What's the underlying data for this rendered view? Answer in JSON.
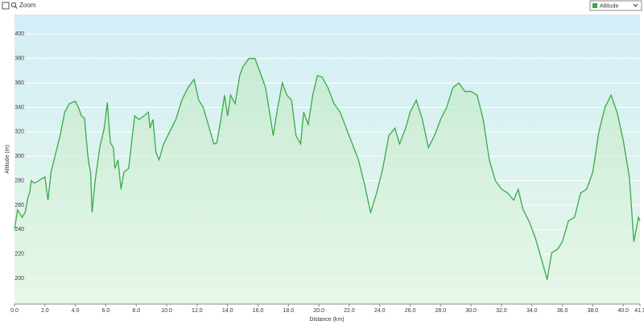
{
  "controls": {
    "zoom": "Zoom"
  },
  "chart_data": {
    "type": "line",
    "xlabel": "Distance  (km)",
    "ylabel": "Altitude (m)",
    "xlim": [
      0,
      41.1
    ],
    "ylim": [
      179,
      416
    ],
    "xticks": [
      {
        "value": 0,
        "label": "0.0"
      },
      {
        "value": 2,
        "label": "2.0"
      },
      {
        "value": 4,
        "label": "4.0"
      },
      {
        "value": 6,
        "label": "6.0"
      },
      {
        "value": 8,
        "label": "8.0"
      },
      {
        "value": 10,
        "label": "10.0"
      },
      {
        "value": 12,
        "label": "12.0"
      },
      {
        "value": 14,
        "label": "14.0"
      },
      {
        "value": 16,
        "label": "16.0"
      },
      {
        "value": 18,
        "label": "18.0"
      },
      {
        "value": 20,
        "label": "20.0"
      },
      {
        "value": 22,
        "label": "22.0"
      },
      {
        "value": 24,
        "label": "24.0"
      },
      {
        "value": 26,
        "label": "26.0"
      },
      {
        "value": 28,
        "label": "28.0"
      },
      {
        "value": 30,
        "label": "30.0"
      },
      {
        "value": 32,
        "label": "32.0"
      },
      {
        "value": 34,
        "label": "34.0"
      },
      {
        "value": 36,
        "label": "36.0"
      },
      {
        "value": 38,
        "label": "38.0"
      },
      {
        "value": 40,
        "label": "40.0"
      },
      41.1
    ],
    "yticks": [
      200,
      220,
      240,
      260,
      280,
      300,
      320,
      340,
      360,
      380,
      400
    ],
    "grid": true,
    "x": [
      0,
      0.2,
      0.5,
      0.7,
      0.9,
      1.0,
      1.1,
      1.3,
      1.6,
      2.0,
      2.2,
      2.4,
      2.8,
      3.0,
      3.3,
      3.6,
      4.0,
      4.2,
      4.4,
      4.6,
      4.8,
      4.9,
      5.0,
      5.1,
      5.3,
      5.6,
      5.9,
      6.1,
      6.3,
      6.5,
      6.6,
      6.8,
      7.0,
      7.2,
      7.5,
      7.8,
      7.9,
      8.2,
      8.5,
      8.8,
      8.9,
      9.1,
      9.3,
      9.5,
      9.8,
      10.2,
      10.6,
      11.0,
      11.4,
      11.8,
      12.1,
      12.4,
      12.8,
      13.1,
      13.3,
      13.6,
      13.8,
      14.0,
      14.2,
      14.5,
      14.8,
      15.0,
      15.4,
      15.8,
      16.1,
      16.5,
      16.8,
      17.0,
      17.3,
      17.6,
      17.9,
      18.2,
      18.5,
      18.8,
      19.0,
      19.3,
      19.6,
      19.9,
      20.2,
      20.6,
      21.0,
      21.4,
      21.8,
      22.2,
      22.6,
      23.0,
      23.4,
      23.8,
      24.2,
      24.6,
      25.0,
      25.3,
      25.7,
      26.0,
      26.4,
      26.8,
      27.2,
      27.6,
      28.0,
      28.4,
      28.8,
      29.2,
      29.6,
      30.0,
      30.4,
      30.8,
      31.2,
      31.6,
      32.0,
      32.4,
      32.8,
      33.1,
      33.4,
      33.8,
      34.2,
      34.6,
      35.0,
      35.3,
      35.7,
      36.0,
      36.4,
      36.8,
      37.2,
      37.6,
      38.0,
      38.4,
      38.8,
      39.2,
      39.6,
      40.0,
      40.4,
      40.7,
      41.0,
      41.1
    ],
    "series": [
      {
        "name": "Altitude",
        "color": "#3aaa48",
        "values": [
          240,
          256,
          250,
          254,
          267,
          270,
          280,
          278,
          280,
          283,
          264,
          287,
          307,
          317,
          336,
          343,
          345,
          340,
          333,
          331,
          303,
          293,
          287,
          254,
          280,
          307,
          323,
          344,
          311,
          307,
          290,
          297,
          273,
          287,
          290,
          323,
          333,
          330,
          333,
          336,
          323,
          330,
          303,
          297,
          310,
          320,
          330,
          346,
          356,
          363,
          346,
          340,
          323,
          310,
          311,
          333,
          350,
          333,
          350,
          343,
          366,
          373,
          380,
          380,
          370,
          356,
          333,
          317,
          340,
          360,
          350,
          346,
          317,
          310,
          336,
          326,
          350,
          366,
          365,
          356,
          343,
          336,
          323,
          310,
          297,
          277,
          254,
          270,
          290,
          317,
          323,
          310,
          323,
          336,
          346,
          330,
          307,
          317,
          330,
          340,
          356,
          360,
          353,
          353,
          350,
          330,
          297,
          280,
          273,
          270,
          264,
          273,
          257,
          247,
          234,
          217,
          199,
          221,
          224,
          230,
          247,
          250,
          270,
          273,
          287,
          320,
          340,
          350,
          336,
          313,
          283,
          230,
          250,
          247
        ]
      }
    ]
  }
}
